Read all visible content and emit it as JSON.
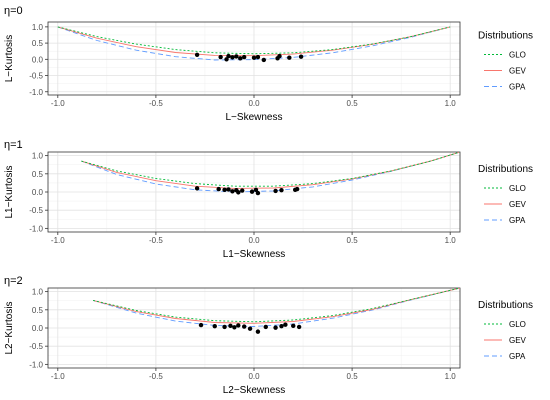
{
  "chart_data": [
    {
      "type": "scatter",
      "title": "η=0",
      "xlabel": "L−Skewness",
      "ylabel": "L−Kurtosis",
      "xlim": [
        -1.05,
        1.05
      ],
      "ylim": [
        -1.1,
        1.15
      ],
      "xticks": [
        -1.0,
        -0.5,
        0.0,
        0.5,
        1.0
      ],
      "xtick_labels": [
        "-1.0",
        "-0.5",
        "0.0",
        "0.5",
        "1.0"
      ],
      "yticks": [
        -1.0,
        -0.5,
        0.0,
        0.5,
        1.0
      ],
      "ytick_labels": [
        "-1.0",
        "-0.5",
        "0.0",
        "0.5",
        "1.0"
      ],
      "grid": true,
      "legend": {
        "title": "Distributions",
        "position": "right",
        "entries": [
          {
            "name": "GLO",
            "color": "#00ba38",
            "dash": "dotted"
          },
          {
            "name": "GEV",
            "color": "#f8766d",
            "dash": "solid"
          },
          {
            "name": "GPA",
            "color": "#619cff",
            "dash": "dashed"
          }
        ]
      },
      "series": [
        {
          "name": "GLO",
          "x": [
            -1.0,
            -0.8,
            -0.6,
            -0.4,
            -0.2,
            0.0,
            0.2,
            0.4,
            0.6,
            0.8,
            1.0
          ],
          "y": [
            1.0,
            0.7,
            0.47,
            0.3,
            0.2,
            0.17,
            0.2,
            0.3,
            0.47,
            0.7,
            1.0
          ]
        },
        {
          "name": "GEV",
          "x": [
            -1.0,
            -0.8,
            -0.6,
            -0.4,
            -0.2,
            0.0,
            0.2,
            0.4,
            0.6,
            0.8,
            1.0
          ],
          "y": [
            1.0,
            0.65,
            0.39,
            0.21,
            0.12,
            0.11,
            0.16,
            0.28,
            0.46,
            0.7,
            1.0
          ]
        },
        {
          "name": "GPA",
          "x": [
            -1.0,
            -0.8,
            -0.6,
            -0.4,
            -0.2,
            0.0,
            0.2,
            0.4,
            0.6,
            0.8,
            1.0
          ],
          "y": [
            1.0,
            0.58,
            0.28,
            0.08,
            -0.02,
            -0.01,
            0.06,
            0.2,
            0.41,
            0.68,
            1.0
          ]
        }
      ],
      "points": {
        "x": [
          -0.29,
          -0.17,
          -0.14,
          -0.13,
          -0.11,
          -0.09,
          -0.07,
          -0.05,
          0.0,
          0.02,
          0.05,
          0.12,
          0.13,
          0.18,
          0.24
        ],
        "y": [
          0.14,
          0.07,
          0.0,
          0.1,
          0.06,
          0.09,
          0.03,
          0.07,
          0.05,
          0.07,
          -0.02,
          0.03,
          0.1,
          0.05,
          0.08
        ]
      }
    },
    {
      "type": "scatter",
      "title": "η=1",
      "xlabel": "L1−Skewness",
      "ylabel": "L1−Kurtosis",
      "xlim": [
        -1.05,
        1.05
      ],
      "ylim": [
        -1.1,
        1.1
      ],
      "xticks": [
        -1.0,
        -0.5,
        0.0,
        0.5,
        1.0
      ],
      "xtick_labels": [
        "-1.0",
        "-0.5",
        "0.0",
        "0.5",
        "1.0"
      ],
      "yticks": [
        -1.0,
        -0.5,
        0.0,
        0.5,
        1.0
      ],
      "ytick_labels": [
        "-1.0",
        "-0.5",
        "0.0",
        "0.5",
        "1.0"
      ],
      "grid": true,
      "legend": {
        "title": "Distributions",
        "position": "right",
        "entries": [
          {
            "name": "GLO",
            "color": "#00ba38",
            "dash": "dotted"
          },
          {
            "name": "GEV",
            "color": "#f8766d",
            "dash": "solid"
          },
          {
            "name": "GPA",
            "color": "#619cff",
            "dash": "dashed"
          }
        ]
      },
      "series": [
        {
          "name": "GLO",
          "x": [
            -0.88,
            -0.7,
            -0.5,
            -0.3,
            -0.1,
            0.1,
            0.3,
            0.5,
            0.7,
            0.9,
            1.05
          ],
          "y": [
            0.85,
            0.58,
            0.37,
            0.23,
            0.16,
            0.16,
            0.23,
            0.37,
            0.58,
            0.85,
            1.1
          ]
        },
        {
          "name": "GEV",
          "x": [
            -0.88,
            -0.7,
            -0.5,
            -0.3,
            -0.1,
            0.1,
            0.3,
            0.5,
            0.7,
            0.9,
            1.05
          ],
          "y": [
            0.85,
            0.54,
            0.31,
            0.16,
            0.1,
            0.11,
            0.2,
            0.36,
            0.58,
            0.85,
            1.1
          ]
        },
        {
          "name": "GPA",
          "x": [
            -0.88,
            -0.7,
            -0.5,
            -0.3,
            -0.1,
            0.1,
            0.3,
            0.5,
            0.7,
            0.9,
            1.05
          ],
          "y": [
            0.85,
            0.48,
            0.22,
            0.06,
            0.0,
            0.03,
            0.14,
            0.33,
            0.57,
            0.85,
            1.1
          ]
        }
      ],
      "points": {
        "x": [
          -0.29,
          -0.18,
          -0.15,
          -0.13,
          -0.11,
          -0.09,
          -0.08,
          -0.06,
          -0.01,
          0.01,
          0.02,
          0.11,
          0.14,
          0.21,
          0.22
        ],
        "y": [
          0.1,
          0.08,
          0.06,
          0.07,
          0.02,
          0.05,
          -0.01,
          0.04,
          0.01,
          0.06,
          -0.03,
          0.03,
          0.05,
          0.06,
          0.08
        ]
      }
    },
    {
      "type": "scatter",
      "title": "η=2",
      "xlabel": "L2−Skewness",
      "ylabel": "L2−Kurtosis",
      "xlim": [
        -1.05,
        1.05
      ],
      "ylim": [
        -1.1,
        1.1
      ],
      "xticks": [
        -1.0,
        -0.5,
        0.0,
        0.5,
        1.0
      ],
      "xtick_labels": [
        "-1.0",
        "-0.5",
        "0.0",
        "0.5",
        "1.0"
      ],
      "yticks": [
        -1.0,
        -0.5,
        0.0,
        0.5,
        1.0
      ],
      "ytick_labels": [
        "-1.0",
        "-0.5",
        "0.0",
        "0.5",
        "1.0"
      ],
      "grid": true,
      "legend": {
        "title": "Distributions",
        "position": "right",
        "entries": [
          {
            "name": "GLO",
            "color": "#00ba38",
            "dash": "dotted"
          },
          {
            "name": "GEV",
            "color": "#f8766d",
            "dash": "solid"
          },
          {
            "name": "GPA",
            "color": "#619cff",
            "dash": "dashed"
          }
        ]
      },
      "series": [
        {
          "name": "GLO",
          "x": [
            -0.82,
            -0.6,
            -0.4,
            -0.2,
            0.0,
            0.2,
            0.4,
            0.6,
            0.8,
            1.05
          ],
          "y": [
            0.76,
            0.48,
            0.3,
            0.2,
            0.17,
            0.22,
            0.34,
            0.53,
            0.78,
            1.1
          ]
        },
        {
          "name": "GEV",
          "x": [
            -0.82,
            -0.6,
            -0.4,
            -0.2,
            0.0,
            0.2,
            0.4,
            0.6,
            0.8,
            1.05
          ],
          "y": [
            0.76,
            0.45,
            0.26,
            0.15,
            0.13,
            0.18,
            0.31,
            0.51,
            0.78,
            1.1
          ]
        },
        {
          "name": "GPA",
          "x": [
            -0.82,
            -0.6,
            -0.4,
            -0.2,
            0.0,
            0.2,
            0.4,
            0.6,
            0.8,
            1.05
          ],
          "y": [
            0.76,
            0.41,
            0.19,
            0.07,
            0.04,
            0.11,
            0.27,
            0.49,
            0.77,
            1.1
          ]
        }
      ],
      "points": {
        "x": [
          -0.27,
          -0.2,
          -0.15,
          -0.12,
          -0.1,
          -0.08,
          -0.05,
          -0.02,
          0.02,
          0.06,
          0.11,
          0.14,
          0.16,
          0.2,
          0.23
        ],
        "y": [
          0.08,
          0.05,
          0.03,
          0.06,
          0.02,
          0.07,
          0.04,
          -0.02,
          -0.1,
          0.03,
          0.01,
          0.05,
          0.09,
          0.06,
          0.03
        ]
      }
    }
  ]
}
